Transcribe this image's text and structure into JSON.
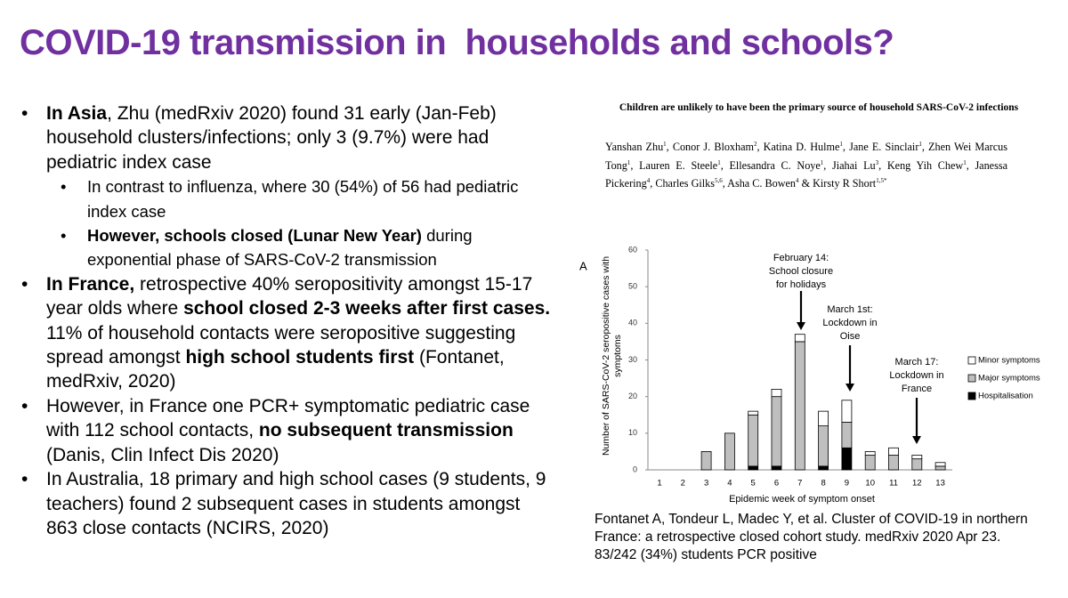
{
  "title": "COVID-19 transmission in  households and schools?",
  "bullets": [
    {
      "segments": [
        {
          "text": "In Asia",
          "bold": true
        },
        {
          "text": ", Zhu (medRxiv 2020) found 31 early (Jan-Feb) household clusters/infections; only 3 (9.7%) were had pediatric index case"
        }
      ],
      "sub": [
        {
          "segments": [
            {
              "text": "In contrast to influenza, where 30 (54%) of 56 had pediatric index case"
            }
          ]
        },
        {
          "segments": [
            {
              "text": "However, schools closed (Lunar New Year)",
              "bold": true
            },
            {
              "text": " during exponential phase of SARS-CoV-2 transmission"
            }
          ]
        }
      ]
    },
    {
      "segments": [
        {
          "text": "In France,",
          "bold": true
        },
        {
          "text": " retrospective 40% seropositivity amongst 15-17 year olds where "
        },
        {
          "text": "school closed 2-3 weeks after first cases.",
          "bold": true
        },
        {
          "text": " 11% of household contacts were seropositive suggesting spread amongst "
        },
        {
          "text": "high school students first",
          "bold": true
        },
        {
          "text": " (Fontanet, medRxiv, 2020)"
        }
      ]
    },
    {
      "segments": [
        {
          "text": "However, in France one PCR+ symptomatic pediatric case with 112 school contacts, "
        },
        {
          "text": "no subsequent transmission",
          "bold": true
        },
        {
          "text": "  (Danis, Clin Infect Dis 2020)"
        }
      ]
    },
    {
      "segments": [
        {
          "text": "In Australia, 18 primary and high school cases (9 students, 9 teachers) found 2 subsequent cases in students amongst 863 close contacts (NCIRS, 2020)"
        }
      ]
    }
  ],
  "paper": {
    "title": "Children are unlikely to have been the primary source of household SARS-CoV-2 infections",
    "authors": [
      {
        "text": "Yanshan Zhu",
        "sup": "1"
      },
      {
        "text": ", Conor J. Bloxham",
        "sup": "2"
      },
      {
        "text": ", Katina D. Hulme",
        "sup": "1"
      },
      {
        "text": ", Jane E. Sinclair",
        "sup": "1"
      },
      {
        "text": ", Zhen Wei Marcus Tong",
        "sup": "1"
      },
      {
        "text": ", Lauren E. Steele",
        "sup": "1"
      },
      {
        "text": ", Ellesandra C. Noye",
        "sup": "1"
      },
      {
        "text": ", Jiahai Lu",
        "sup": "3"
      },
      {
        "text": ", Keng Yih Chew",
        "sup": "1"
      },
      {
        "text": ", Janessa Pickering",
        "sup": "4"
      },
      {
        "text": ", Charles Gilks",
        "sup": "5,6"
      },
      {
        "text": ", Asha C. Bowen",
        "sup": "4"
      },
      {
        "text": " & Kirsty R Short",
        "sup": "1,5*"
      }
    ]
  },
  "citation": [
    "Fontanet A, Tondeur L, Madec Y, et al. Cluster of COVID-19 in northern",
    "France: a retrospective closed cohort study. medRxiv 2020 Apr 23.",
    "83/242 (34%) students PCR positive"
  ],
  "chart_data": {
    "type": "stacked-bar",
    "panel_label": "A",
    "y_label": [
      "Number of SARS-CoV-2 seropositive cases with",
      "symptoms"
    ],
    "x_label": "Epidemic week of symptom onset",
    "categories": [
      "1",
      "2",
      "3",
      "4",
      "5",
      "6",
      "7",
      "8",
      "9",
      "10",
      "11",
      "12",
      "13"
    ],
    "series": [
      {
        "name": "Hospitalisation",
        "color": "#000000",
        "values": [
          0,
          0,
          0,
          0,
          1,
          1,
          0,
          1,
          6,
          0,
          0,
          0,
          0
        ]
      },
      {
        "name": "Major symptoms",
        "color": "#bfbfbf",
        "values": [
          0,
          0,
          5,
          10,
          14,
          19,
          35,
          11,
          7,
          4,
          4,
          3,
          1
        ]
      },
      {
        "name": "Minor symptoms",
        "color": "#ffffff",
        "values": [
          0,
          0,
          0,
          0,
          1,
          2,
          2,
          4,
          6,
          1,
          2,
          1,
          1
        ]
      }
    ],
    "ylim": [
      0,
      60
    ],
    "yticks": [
      0,
      10,
      20,
      30,
      40,
      50,
      60
    ],
    "annotations": [
      [
        "February 14:",
        "School closure",
        "for holidays"
      ],
      [
        "March 1st:",
        "Lockdown in",
        "Oise"
      ],
      [
        "March 17:",
        "Lockdown in",
        "France"
      ]
    ]
  }
}
